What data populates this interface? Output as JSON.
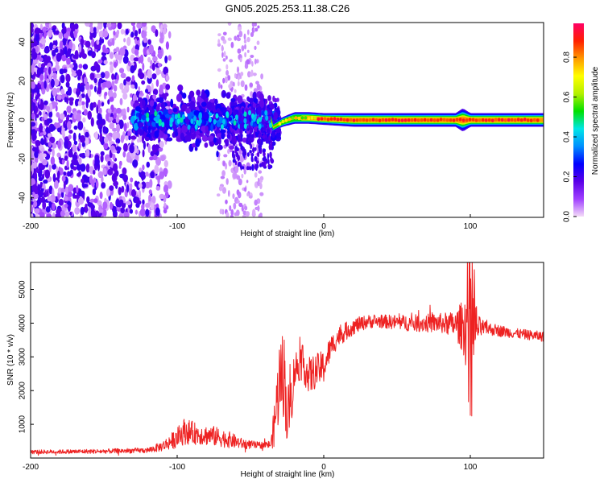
{
  "title": "GN05.2025.253.11.38.C26",
  "chart_data": [
    {
      "type": "heatmap",
      "name": "spectrogram",
      "xlabel": "Height of straight line (km)",
      "ylabel": "Frequency (Hz)",
      "xlim": [
        -200,
        150
      ],
      "ylim": [
        -50,
        50
      ],
      "xticks": [
        -200,
        -100,
        0,
        100
      ],
      "yticks": [
        -40,
        -20,
        0,
        20,
        40
      ],
      "colorbar": {
        "label": "Normalized spectral amplitude",
        "range": [
          0,
          0.97
        ],
        "ticks": [
          "0.0",
          "0.2",
          "0.4",
          "0.6",
          "0.8"
        ],
        "tick_values": [
          0.0,
          0.2,
          0.4,
          0.6,
          0.8
        ],
        "colors": [
          "#f4dcf8",
          "#a040ff",
          "#5a00e8",
          "#0000ff",
          "#0090ff",
          "#00e6e6",
          "#00e000",
          "#b4f000",
          "#ffff00",
          "#ff9900",
          "#ff2000",
          "#ff0066"
        ]
      },
      "band": [
        {
          "height": -35,
          "center": -4,
          "halfwidth": 2.0
        },
        {
          "height": -28,
          "center": -1,
          "halfwidth": 2.5
        },
        {
          "height": -20,
          "center": 1,
          "halfwidth": 3.0
        },
        {
          "height": -10,
          "center": 1,
          "halfwidth": 3.0
        },
        {
          "height": 0,
          "center": 0.5,
          "halfwidth": 3.0
        },
        {
          "height": 20,
          "center": 0,
          "halfwidth": 3.5
        },
        {
          "height": 60,
          "center": 0,
          "halfwidth": 3.5
        },
        {
          "height": 90,
          "center": 0,
          "halfwidth": 3.5
        },
        {
          "height": 95,
          "center": 0,
          "halfwidth": 6.0
        },
        {
          "height": 100,
          "center": 0,
          "halfwidth": 3.5
        },
        {
          "height": 150,
          "center": 0,
          "halfwidth": 3.5
        }
      ]
    },
    {
      "type": "line",
      "name": "snr",
      "xlabel": "Height of straight line (km)",
      "ylabel": "SNR (10 * v/v)",
      "xlim": [
        -200,
        150
      ],
      "ylim": [
        0,
        5800
      ],
      "xticks": [
        -200,
        -100,
        0,
        100
      ],
      "yticks": [
        1000,
        2000,
        3000,
        4000,
        5000
      ],
      "color": "#ee2222",
      "envelope": {
        "x": [
          -200,
          -150,
          -120,
          -110,
          -100,
          -95,
          -85,
          -75,
          -65,
          -55,
          -45,
          -36,
          -34,
          -30,
          -27,
          -25,
          -22,
          -20,
          -15,
          -10,
          -5,
          0,
          5,
          10,
          20,
          30,
          40,
          60,
          80,
          90,
          96,
          98,
          100,
          102,
          105,
          110,
          130,
          150
        ],
        "base": [
          180,
          200,
          230,
          350,
          600,
          800,
          700,
          650,
          550,
          420,
          380,
          400,
          900,
          2400,
          2500,
          1200,
          1800,
          2600,
          2900,
          2400,
          2600,
          2700,
          3300,
          3600,
          3900,
          4050,
          4050,
          4000,
          4000,
          3950,
          3900,
          4000,
          4200,
          3800,
          3850,
          3850,
          3700,
          3600
        ],
        "noise": [
          60,
          70,
          80,
          150,
          300,
          400,
          300,
          300,
          250,
          150,
          100,
          120,
          600,
          1300,
          1300,
          900,
          800,
          600,
          500,
          600,
          500,
          500,
          350,
          300,
          250,
          200,
          200,
          250,
          300,
          400,
          900,
          1800,
          2500,
          1800,
          400,
          200,
          150,
          150
        ]
      }
    }
  ]
}
